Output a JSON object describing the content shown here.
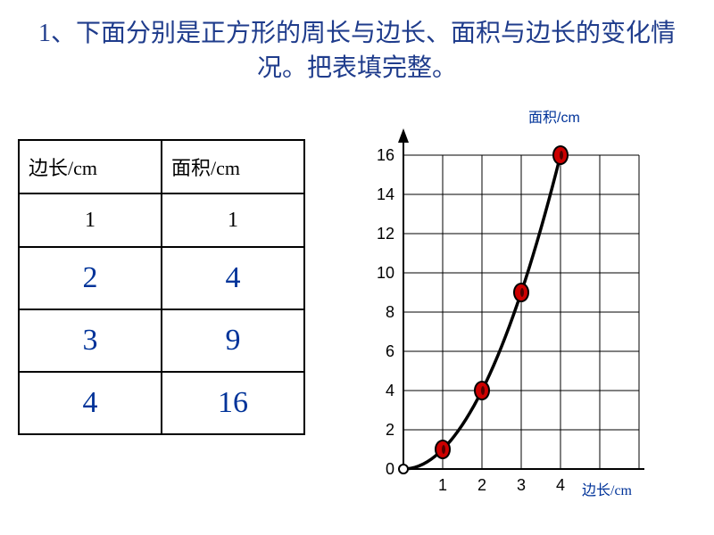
{
  "title": "1、下面分别是正方形的周长与边长、面积与边长的变化情况。把表填完整。",
  "title_color": "#1f3c8c",
  "table": {
    "headers": [
      "边长/cm",
      "面积/cm"
    ],
    "rows": [
      {
        "side": "1",
        "area": "1",
        "big": false,
        "color": "#000000"
      },
      {
        "side": "2",
        "area": "4",
        "big": true,
        "color": "#003399"
      },
      {
        "side": "3",
        "area": "9",
        "big": true,
        "color": "#003399"
      },
      {
        "side": "4",
        "area": "16",
        "big": true,
        "color": "#003399"
      }
    ]
  },
  "chart": {
    "y_title": "面积/cm",
    "x_title": "边长/cm",
    "y_title_color": "#003399",
    "x_title_color": "#003399",
    "grid_color": "#000000",
    "line_color": "#000000",
    "marker_fill": "#cc0000",
    "marker_stroke": "#000000",
    "x_ticks": [
      "1",
      "2",
      "3",
      "4"
    ],
    "y_ticks": [
      "0",
      "2",
      "4",
      "6",
      "8",
      "10",
      "12",
      "14",
      "16"
    ],
    "points": [
      {
        "x": 1,
        "y": 1
      },
      {
        "x": 2,
        "y": 4
      },
      {
        "x": 3,
        "y": 9
      },
      {
        "x": 4,
        "y": 16
      }
    ],
    "x_max": 4,
    "y_max": 16,
    "grid_cols": 6,
    "grid_rows": 8
  }
}
